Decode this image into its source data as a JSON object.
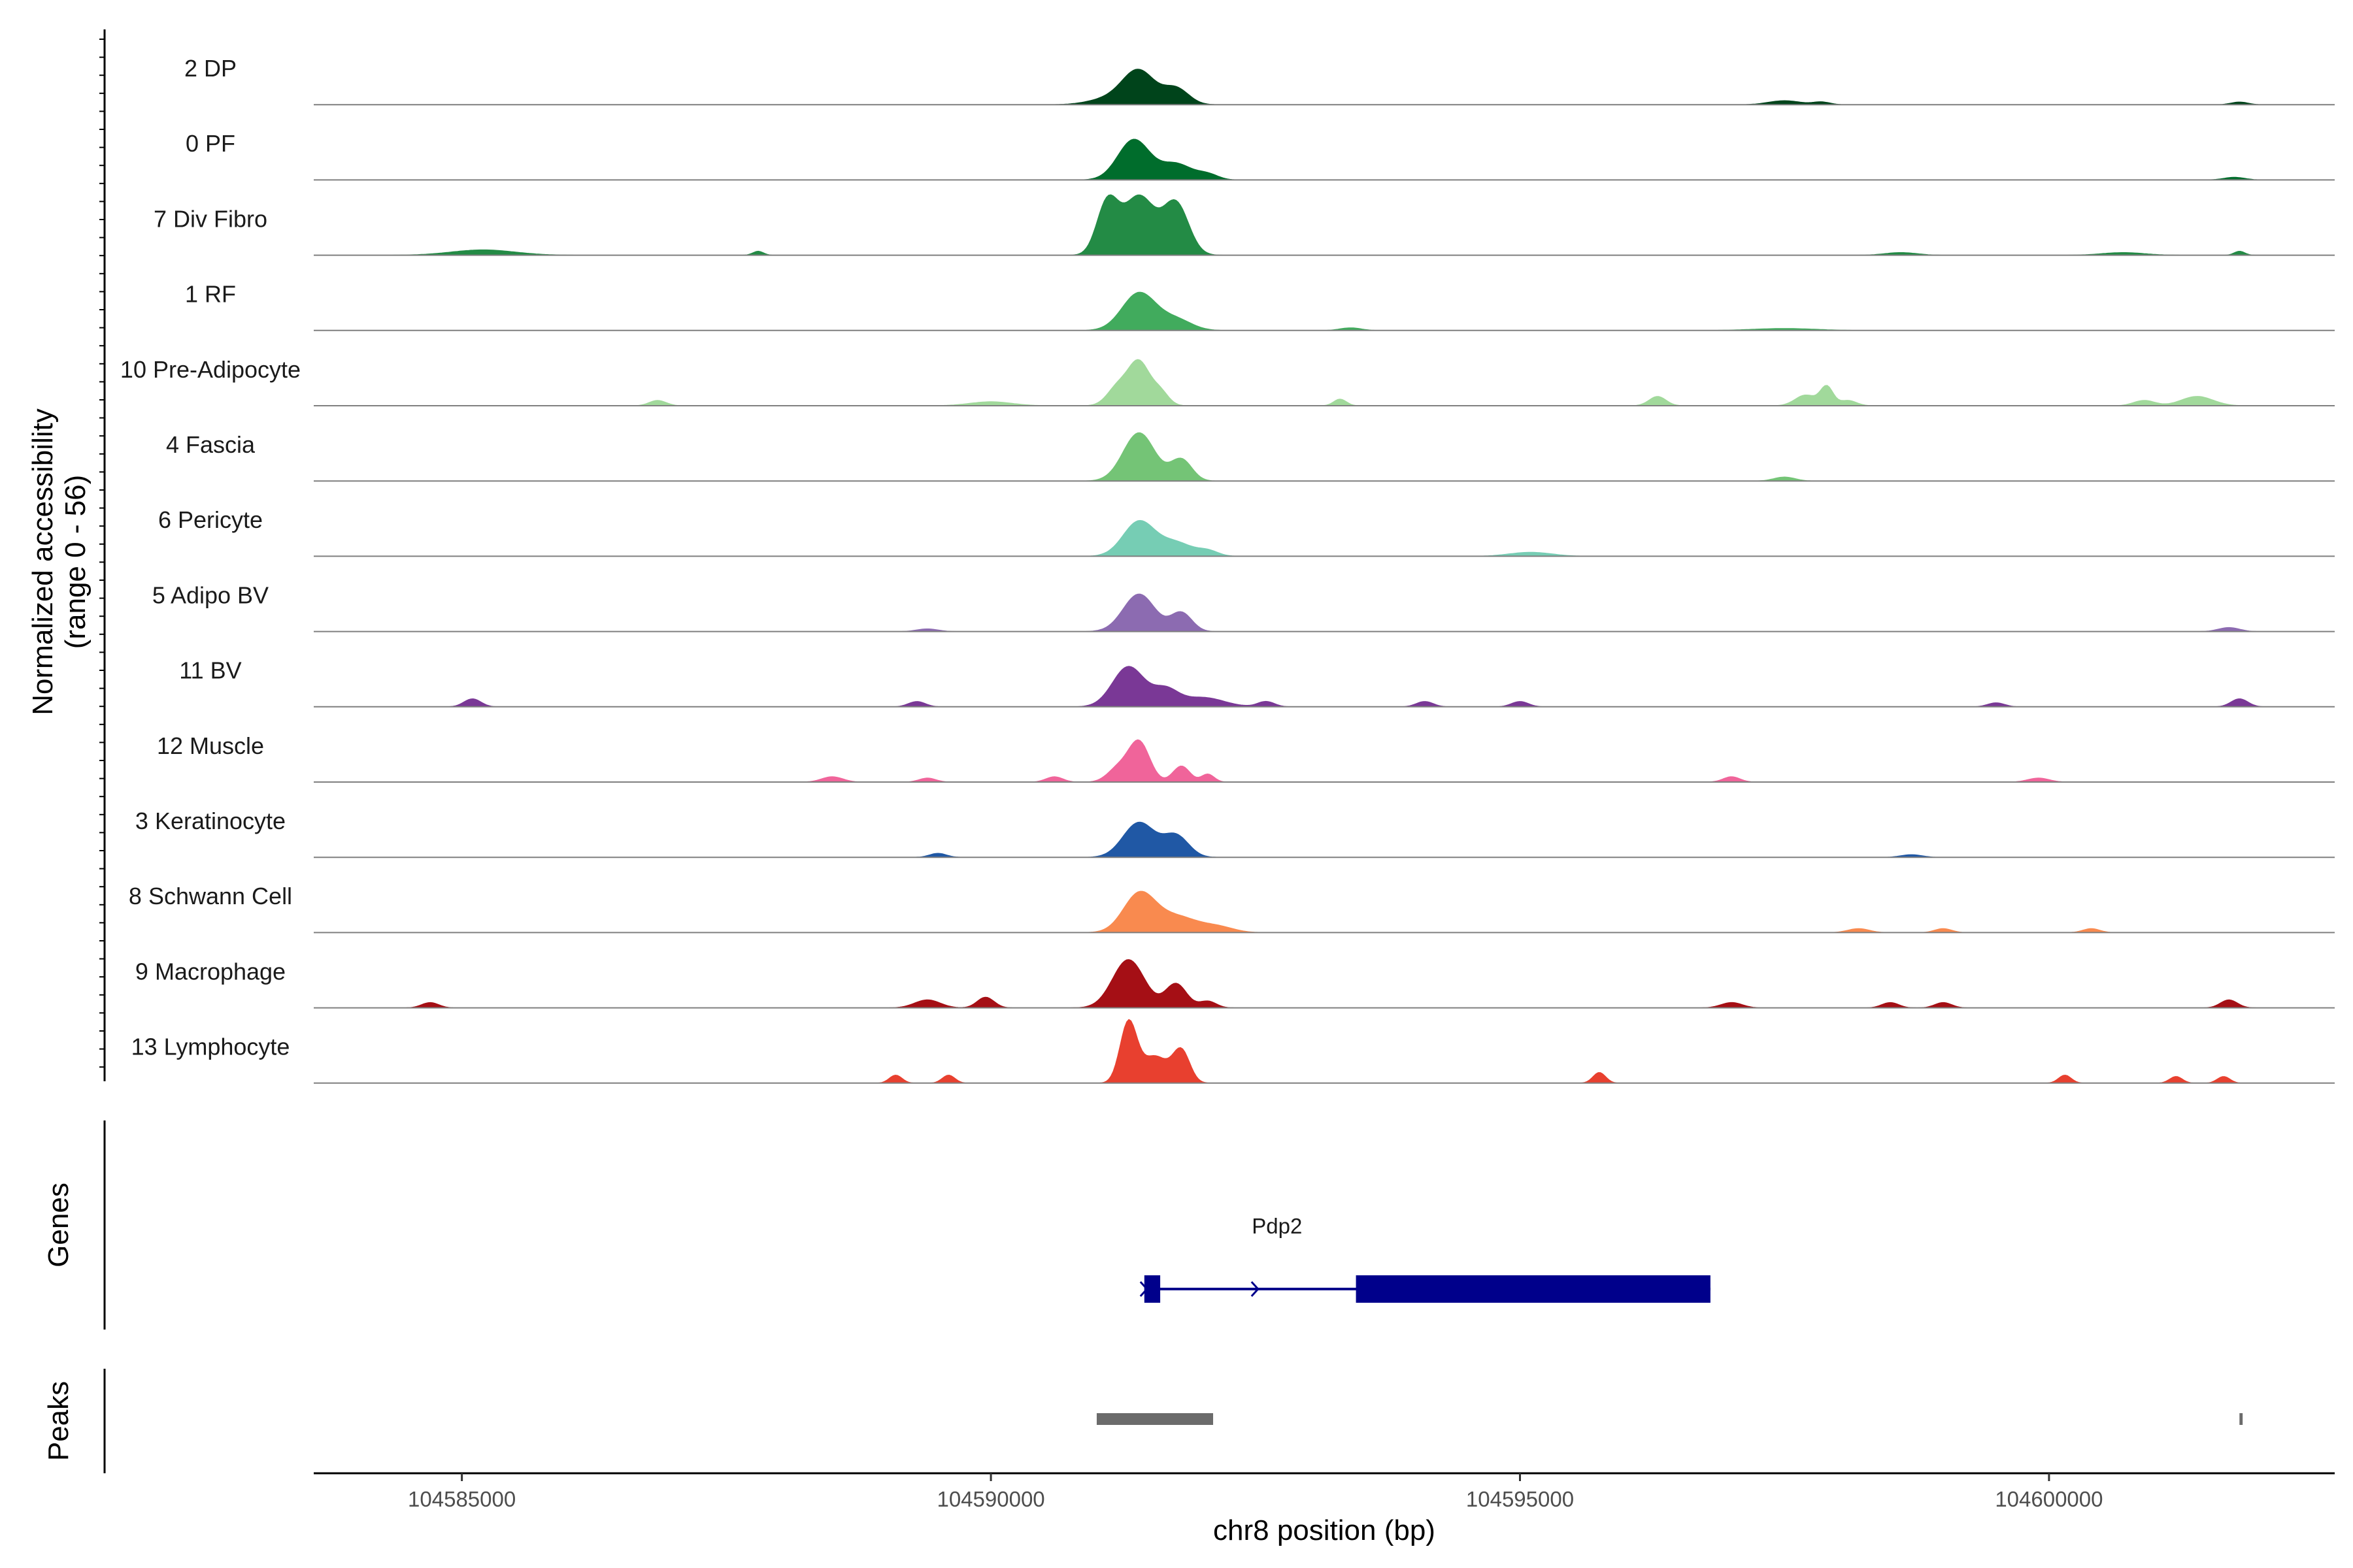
{
  "chart_data": {
    "type": "area",
    "subtype": "genome-coverage-tracks",
    "ylabel_line1": "Normalized accessibility",
    "ylabel_line2": "(range 0 - 56)",
    "y_range": [
      0,
      56
    ],
    "xlabel": "chr8 position (bp)",
    "xlim": [
      104583600,
      104602700
    ],
    "x_ticks": [
      104585000,
      104590000,
      104595000,
      104600000
    ],
    "x_tick_labels": [
      "104585000",
      "104590000",
      "104595000",
      "104600000"
    ],
    "grid": false,
    "tracks": [
      {
        "name": "2 DP",
        "color": "#00441b",
        "peaks": [
          [
            104591400,
            24,
            150
          ],
          [
            104591750,
            12,
            120
          ],
          [
            104591150,
            5,
            200
          ],
          [
            104597500,
            3,
            150
          ],
          [
            104597850,
            2,
            80
          ],
          [
            104601800,
            2,
            80
          ]
        ]
      },
      {
        "name": "0 PF",
        "color": "#006d2c",
        "peaks": [
          [
            104591350,
            30,
            150
          ],
          [
            104591750,
            12,
            150
          ],
          [
            104592050,
            4,
            100
          ],
          [
            104601750,
            2,
            100
          ]
        ]
      },
      {
        "name": "7 Div Fibro",
        "color": "#238b45",
        "peaks": [
          [
            104591100,
            38,
            100
          ],
          [
            104591400,
            44,
            150
          ],
          [
            104591750,
            38,
            120
          ],
          [
            104585200,
            4,
            300
          ],
          [
            104587800,
            3,
            50
          ],
          [
            104598600,
            2,
            150
          ],
          [
            104600700,
            2,
            200
          ],
          [
            104601800,
            3,
            50
          ]
        ]
      },
      {
        "name": "1 RF",
        "color": "#41ab5d",
        "peaks": [
          [
            104591400,
            28,
            160
          ],
          [
            104591750,
            8,
            150
          ],
          [
            104593400,
            2,
            100
          ],
          [
            104597500,
            1.5,
            300
          ]
        ]
      },
      {
        "name": "10 Pre-Adipocyte",
        "color": "#a1d99b",
        "peaks": [
          [
            104591400,
            32,
            100
          ],
          [
            104591200,
            14,
            100
          ],
          [
            104591600,
            10,
            80
          ],
          [
            104586850,
            4,
            80
          ],
          [
            104590000,
            3,
            200
          ],
          [
            104593300,
            5,
            60
          ],
          [
            104596300,
            7,
            80
          ],
          [
            104597700,
            8,
            100
          ],
          [
            104597900,
            14,
            60
          ],
          [
            104598100,
            4,
            80
          ],
          [
            104600900,
            4,
            100
          ],
          [
            104601400,
            7,
            150
          ]
        ]
      },
      {
        "name": "4 Fascia",
        "color": "#74c476",
        "peaks": [
          [
            104591400,
            36,
            150
          ],
          [
            104591800,
            16,
            100
          ],
          [
            104597500,
            3,
            100
          ]
        ]
      },
      {
        "name": "6 Pericyte",
        "color": "#76cdb4",
        "peaks": [
          [
            104591400,
            26,
            150
          ],
          [
            104591750,
            10,
            150
          ],
          [
            104592050,
            4,
            100
          ],
          [
            104595100,
            3,
            200
          ]
        ]
      },
      {
        "name": "5 Adipo BV",
        "color": "#8c6bb1",
        "peaks": [
          [
            104591400,
            28,
            150
          ],
          [
            104591800,
            14,
            100
          ],
          [
            104589400,
            2,
            100
          ],
          [
            104601700,
            3,
            100
          ]
        ]
      },
      {
        "name": "11 BV",
        "color": "#7a3896",
        "peaks": [
          [
            104591300,
            30,
            150
          ],
          [
            104591650,
            12,
            120
          ],
          [
            104592000,
            7,
            200
          ],
          [
            104585100,
            6,
            80
          ],
          [
            104589300,
            4,
            80
          ],
          [
            104592600,
            4,
            80
          ],
          [
            104594100,
            4,
            80
          ],
          [
            104595000,
            4,
            80
          ],
          [
            104599500,
            3,
            80
          ],
          [
            104601800,
            6,
            80
          ]
        ]
      },
      {
        "name": "12 Muscle",
        "color": "#f0649a",
        "peaks": [
          [
            104591400,
            30,
            100
          ],
          [
            104591200,
            10,
            100
          ],
          [
            104591800,
            12,
            80
          ],
          [
            104592050,
            6,
            60
          ],
          [
            104588500,
            4,
            100
          ],
          [
            104589400,
            3,
            80
          ],
          [
            104590600,
            4,
            80
          ],
          [
            104597000,
            4,
            80
          ],
          [
            104599900,
            3,
            100
          ]
        ]
      },
      {
        "name": "3 Keratinocyte",
        "color": "#2058a5",
        "peaks": [
          [
            104591400,
            26,
            150
          ],
          [
            104591750,
            16,
            120
          ],
          [
            104589500,
            3,
            80
          ],
          [
            104598700,
            2,
            100
          ]
        ]
      },
      {
        "name": "8 Schwann Cell",
        "color": "#f98a4f",
        "peaks": [
          [
            104591400,
            28,
            150
          ],
          [
            104591750,
            12,
            200
          ],
          [
            104592150,
            4,
            150
          ],
          [
            104598200,
            3,
            100
          ],
          [
            104599000,
            3,
            80
          ],
          [
            104600400,
            3,
            80
          ]
        ]
      },
      {
        "name": "9 Macrophage",
        "color": "#a50f15",
        "peaks": [
          [
            104591300,
            36,
            150
          ],
          [
            104591750,
            18,
            100
          ],
          [
            104592050,
            5,
            80
          ],
          [
            104589400,
            6,
            120
          ],
          [
            104589950,
            8,
            80
          ],
          [
            104584700,
            4,
            80
          ],
          [
            104597000,
            4,
            100
          ],
          [
            104598500,
            4,
            80
          ],
          [
            104599000,
            4,
            80
          ],
          [
            104601700,
            6,
            80
          ]
        ]
      },
      {
        "name": "13 Lymphocyte",
        "color": "#e8402f",
        "peaks": [
          [
            104591300,
            45,
            80
          ],
          [
            104591550,
            20,
            120
          ],
          [
            104591800,
            24,
            80
          ],
          [
            104589100,
            6,
            60
          ],
          [
            104589600,
            6,
            60
          ],
          [
            104595750,
            8,
            60
          ],
          [
            104600150,
            6,
            60
          ],
          [
            104601200,
            5,
            60
          ],
          [
            104601650,
            5,
            60
          ]
        ]
      }
    ],
    "genes_label": "Genes",
    "genes": [
      {
        "name": "Pdp2",
        "color": "#00008b",
        "start": 104591450,
        "end": 104596800,
        "strand": "+",
        "exons": [
          [
            104591450,
            104591600
          ],
          [
            104593450,
            104596800
          ]
        ]
      }
    ],
    "peaks_label": "Peaks",
    "peak_regions": [
      [
        104591000,
        104592100
      ],
      [
        104601800,
        104601830
      ]
    ]
  }
}
